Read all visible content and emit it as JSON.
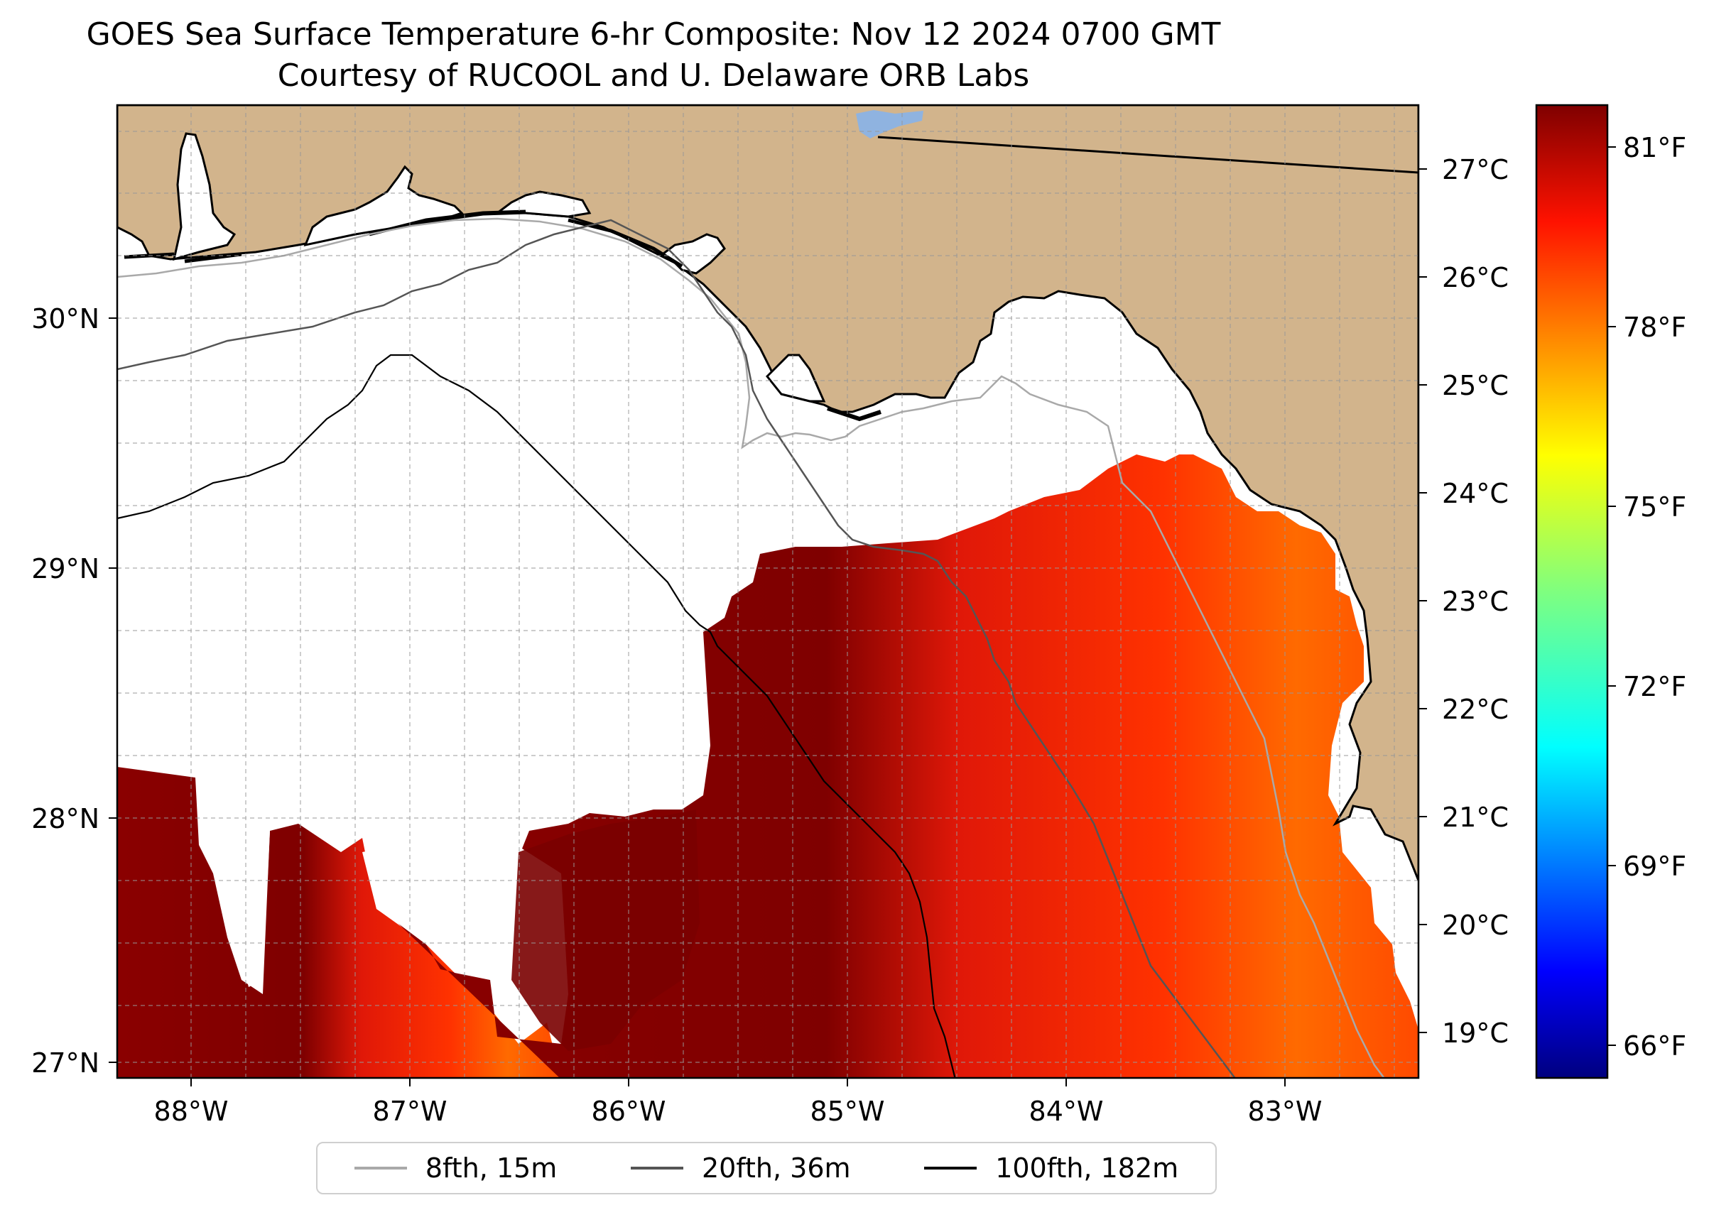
{
  "title_line1": "GOES Sea Surface Temperature 6-hr Composite: Nov 12 2024 0700 GMT",
  "title_line2": "Courtesy of RUCOOL and U. Delaware ORB Labs",
  "map": {
    "lon_ticks": [
      "88°W",
      "87°W",
      "86°W",
      "85°W",
      "84°W",
      "83°W"
    ],
    "lat_ticks": [
      "30°N",
      "29°N",
      "28°N",
      "27°N"
    ],
    "land_color": "#d2b48c",
    "ocean_color": "#ffffff"
  },
  "legend": [
    {
      "label": "8fth, 15m",
      "color": "#a9a9a9"
    },
    {
      "label": "20fth, 36m",
      "color": "#555555"
    },
    {
      "label": "100fth, 182m",
      "color": "#000000"
    }
  ],
  "colorbar": {
    "celsius_ticks": [
      "27°C",
      "26°C",
      "25°C",
      "24°C",
      "23°C",
      "22°C",
      "21°C",
      "20°C",
      "19°C"
    ],
    "fahrenheit_ticks": [
      "81°F",
      "78°F",
      "75°F",
      "72°F",
      "69°F",
      "66°F"
    ],
    "colormap": "jet"
  }
}
